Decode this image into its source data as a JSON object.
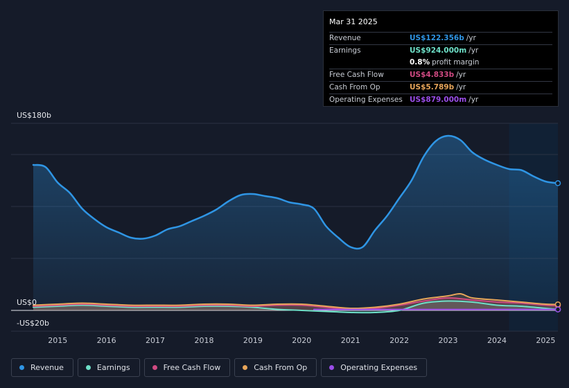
{
  "colors": {
    "revenue": "#2f95e4",
    "earnings": "#6ee0c8",
    "free_cash_flow": "#d04a82",
    "cash_from_op": "#e7a55a",
    "operating_expenses": "#9a4de8"
  },
  "tooltip": {
    "date": "Mar 31 2025",
    "rows": [
      {
        "label": "Revenue",
        "value": "US$122.356b",
        "unit": "/yr",
        "color": "#2f95e4"
      },
      {
        "label": "Earnings",
        "value": "US$924.000m",
        "unit": "/yr",
        "color": "#6ee0c8"
      },
      {
        "label": "",
        "value": "0.8%",
        "unit": "profit margin",
        "color": "#ffffff"
      },
      {
        "label": "Free Cash Flow",
        "value": "US$4.833b",
        "unit": "/yr",
        "color": "#d04a82"
      },
      {
        "label": "Cash From Op",
        "value": "US$5.789b",
        "unit": "/yr",
        "color": "#e7a55a"
      },
      {
        "label": "Operating Expenses",
        "value": "US$879.000m",
        "unit": "/yr",
        "color": "#9a4de8"
      }
    ]
  },
  "axis": {
    "y_top_label": "US$180b",
    "y_zero_label": "US$0",
    "y_bottom_label": "-US$20b"
  },
  "legend": [
    {
      "label": "Revenue",
      "color": "#2f95e4"
    },
    {
      "label": "Earnings",
      "color": "#6ee0c8"
    },
    {
      "label": "Free Cash Flow",
      "color": "#d04a82"
    },
    {
      "label": "Cash From Op",
      "color": "#e7a55a"
    },
    {
      "label": "Operating Expenses",
      "color": "#9a4de8"
    }
  ],
  "chart_data": {
    "type": "area",
    "title": "",
    "xlabel": "",
    "ylabel": "",
    "xlim": [
      2014.5,
      2025.25
    ],
    "ylim": [
      -20,
      180
    ],
    "x_ticks": [
      2015,
      2016,
      2017,
      2018,
      2019,
      2020,
      2021,
      2022,
      2023,
      2024,
      2025
    ],
    "x_tick_labels": [
      "2015",
      "2016",
      "2017",
      "2018",
      "2019",
      "2020",
      "2021",
      "2022",
      "2023",
      "2024",
      "2025"
    ],
    "highlight_from": 2024.25,
    "series": [
      {
        "name": "Revenue",
        "x": [
          2014.5,
          2014.75,
          2015.0,
          2015.25,
          2015.5,
          2015.75,
          2016.0,
          2016.25,
          2016.5,
          2016.75,
          2017.0,
          2017.25,
          2017.5,
          2017.75,
          2018.0,
          2018.25,
          2018.5,
          2018.75,
          2019.0,
          2019.25,
          2019.5,
          2019.75,
          2020.0,
          2020.25,
          2020.5,
          2020.75,
          2021.0,
          2021.25,
          2021.5,
          2021.75,
          2022.0,
          2022.25,
          2022.5,
          2022.75,
          2023.0,
          2023.25,
          2023.5,
          2023.75,
          2024.0,
          2024.25,
          2024.5,
          2024.75,
          2025.0,
          2025.25
        ],
        "values": [
          140,
          138,
          123,
          113,
          98,
          88,
          80,
          75,
          70,
          69,
          72,
          78,
          81,
          86,
          91,
          97,
          105,
          111,
          112,
          110,
          108,
          104,
          102,
          98,
          81,
          70,
          61,
          61,
          77,
          91,
          108,
          125,
          148,
          163,
          168,
          164,
          152,
          145,
          140,
          136,
          135,
          129,
          124,
          122.4
        ]
      },
      {
        "name": "Earnings",
        "x": [
          2014.5,
          2015.0,
          2015.5,
          2016.0,
          2016.5,
          2017.0,
          2017.5,
          2018.0,
          2018.5,
          2019.0,
          2019.5,
          2020.0,
          2020.5,
          2021.0,
          2021.5,
          2022.0,
          2022.5,
          2023.0,
          2023.5,
          2024.0,
          2024.5,
          2025.0,
          2025.25
        ],
        "values": [
          3,
          4,
          5,
          4,
          3,
          3,
          3,
          4,
          4,
          3,
          1,
          0,
          -1,
          -2,
          -2,
          0,
          7,
          9,
          8,
          5,
          4,
          2,
          0.92
        ]
      },
      {
        "name": "Free Cash Flow",
        "x": [
          2014.5,
          2015.0,
          2015.5,
          2016.0,
          2016.5,
          2017.0,
          2017.5,
          2018.0,
          2018.5,
          2019.0,
          2019.5,
          2020.0,
          2020.5,
          2021.0,
          2021.5,
          2022.0,
          2022.5,
          2023.0,
          2023.5,
          2024.0,
          2024.5,
          2025.0,
          2025.25
        ],
        "values": [
          4,
          5,
          6,
          5,
          4,
          4,
          4,
          5,
          5,
          4,
          5,
          5,
          3,
          1,
          2,
          5,
          9,
          12,
          10,
          8,
          7,
          5,
          4.83
        ]
      },
      {
        "name": "Cash From Op",
        "x": [
          2014.5,
          2015.0,
          2015.5,
          2016.0,
          2016.5,
          2017.0,
          2017.5,
          2018.0,
          2018.5,
          2019.0,
          2019.5,
          2020.0,
          2020.5,
          2021.0,
          2021.5,
          2022.0,
          2022.5,
          2023.0,
          2023.25,
          2023.5,
          2024.0,
          2024.5,
          2025.0,
          2025.25
        ],
        "values": [
          5,
          6,
          7,
          6,
          5,
          5,
          5,
          6,
          6,
          5,
          6,
          6,
          4,
          2,
          3,
          6,
          11,
          14,
          16,
          12,
          10,
          8,
          6,
          5.79
        ]
      },
      {
        "name": "Operating Expenses",
        "x": [
          2020.25,
          2021.0,
          2022.0,
          2023.0,
          2024.0,
          2025.0,
          2025.25
        ],
        "values": [
          0.9,
          0.9,
          0.9,
          0.9,
          0.9,
          0.9,
          0.88
        ]
      }
    ]
  }
}
